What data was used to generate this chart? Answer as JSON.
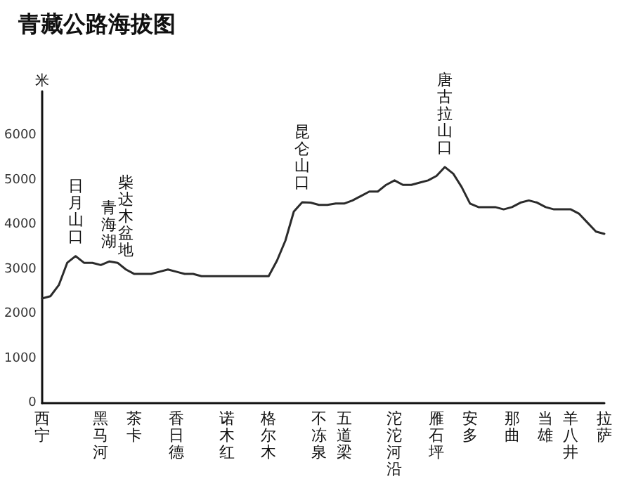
{
  "chart_data": {
    "type": "line",
    "title": "青藏公路海拔图",
    "ylabel": "米",
    "categories": [
      "西宁",
      null,
      null,
      null,
      null,
      null,
      null,
      "黑马河",
      null,
      null,
      null,
      "茶卡",
      null,
      null,
      null,
      null,
      "香日德",
      null,
      null,
      null,
      null,
      null,
      "诺木红",
      null,
      null,
      null,
      null,
      "格尔木",
      null,
      null,
      null,
      null,
      null,
      "不冻泉",
      null,
      null,
      "五道梁",
      null,
      null,
      null,
      null,
      null,
      "沱沱河沿",
      null,
      null,
      null,
      null,
      "雁石坪",
      null,
      null,
      null,
      "安多",
      null,
      null,
      null,
      null,
      "那曲",
      null,
      null,
      null,
      "当雄",
      null,
      null,
      "羊八井",
      null,
      null,
      null,
      "拉萨"
    ],
    "values": [
      2350,
      2400,
      2650,
      3150,
      3300,
      3150,
      3150,
      3100,
      3180,
      3150,
      3000,
      2900,
      2900,
      2900,
      2950,
      3000,
      2950,
      2900,
      2900,
      2850,
      2850,
      2850,
      2850,
      2850,
      2850,
      2850,
      2850,
      2850,
      3200,
      3650,
      4300,
      4510,
      4500,
      4450,
      4450,
      4480,
      4480,
      4550,
      4650,
      4750,
      4750,
      4900,
      5000,
      4900,
      4900,
      4950,
      5000,
      5100,
      5300,
      5150,
      4850,
      4480,
      4400,
      4400,
      4400,
      4350,
      4400,
      4500,
      4550,
      4500,
      4400,
      4350,
      4350,
      4350,
      4250,
      4050,
      3850,
      3800
    ],
    "color": "#2b2b2b",
    "ylim": [
      0,
      7000
    ],
    "yticks": [
      0,
      1000,
      2000,
      3000,
      4000,
      5000,
      6000
    ],
    "marker": "none",
    "line_style": "solid",
    "annotations": [
      {
        "text": "日月山口",
        "y": 3300
      },
      {
        "text": "青海湖",
        "y": 3180
      },
      {
        "text": "柴达木盆地",
        "y": 3000
      },
      {
        "text": "昆仑山口",
        "y": 4510
      },
      {
        "text": "唐古拉山口",
        "y": 5300
      }
    ]
  }
}
